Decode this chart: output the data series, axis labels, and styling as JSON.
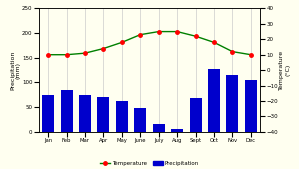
{
  "months": [
    "Jan",
    "Feb",
    "Mar",
    "Apr",
    "May",
    "June",
    "July",
    "Aug",
    "Sept",
    "Oct",
    "Nov",
    "Dec"
  ],
  "precipitation": [
    75,
    85,
    75,
    70,
    62,
    48,
    15,
    5,
    68,
    128,
    115,
    105
  ],
  "temperature": [
    10,
    10,
    11,
    14,
    18,
    23,
    25,
    25,
    22,
    18,
    12,
    10
  ],
  "bar_color": "#0000cc",
  "line_color": "#008000",
  "marker_color": "#ff0000",
  "bg_color": "#fffff0",
  "left_ylim": [
    0,
    250
  ],
  "right_ylim": [
    -40,
    40
  ],
  "left_yticks": [
    0,
    50,
    100,
    150,
    200,
    250
  ],
  "right_yticks": [
    -40,
    -30,
    -20,
    -10,
    0,
    10,
    20,
    30,
    40
  ],
  "left_ylabel": "Precipitation\n(mm)",
  "right_ylabel": "Temperature\n(°C)",
  "legend_temp": "Temperature",
  "legend_precip": "Precipitation",
  "figsize": [
    2.99,
    1.69
  ],
  "dpi": 100
}
